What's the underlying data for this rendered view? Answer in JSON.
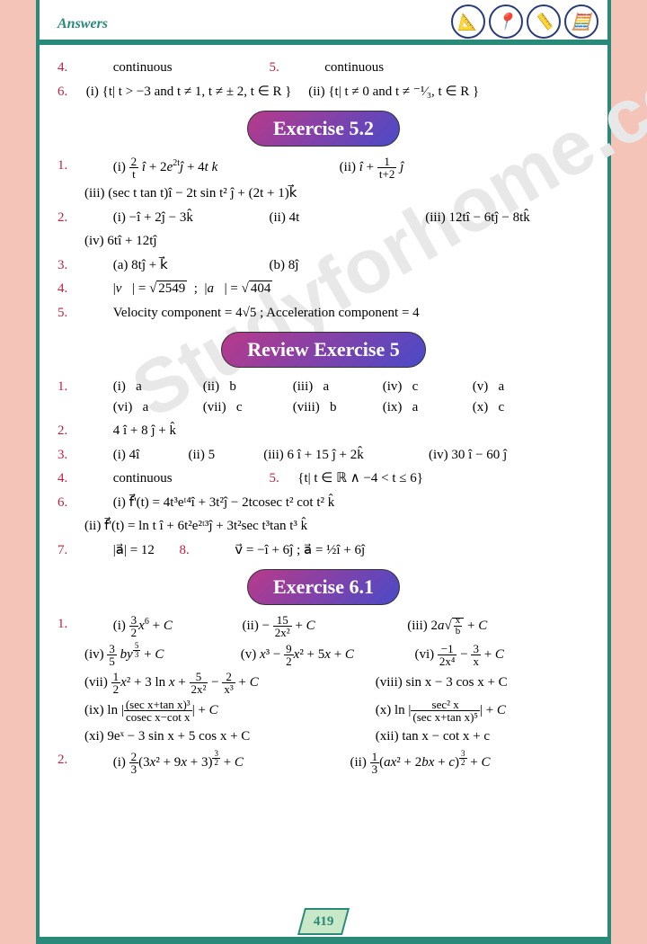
{
  "header": {
    "title": "Answers"
  },
  "colors": {
    "border": "#2a8a7a",
    "qnum": "#8a2a4a",
    "pill_gradient_from": "#b83a8a",
    "pill_gradient_to": "#4a4ac8",
    "watermark": "#e8e8e8",
    "page_bg": "#f5c4b8"
  },
  "icons": [
    "📐",
    "✂️",
    "📏",
    "🧮"
  ],
  "top": {
    "q4": {
      "num": "4.",
      "text": "continuous"
    },
    "q5": {
      "num": "5.",
      "text": "continuous"
    },
    "q6": {
      "num": "6.",
      "i": "(i) {t| t > −3 and t ≠ 1, t ≠ ± 2, t ∈ R }",
      "ii": "(ii) {t| t ≠ 0 and t ≠ ⁻¹⁄₃, t ∈ R }"
    }
  },
  "pill1": "Exercise 5.2",
  "ex52": {
    "q1": {
      "num": "1.",
      "i": "(i) (2/t) î + 2e²ᵗĵ + 4t k⃗",
      "ii": "(ii) î + 1/(t+2) ĵ",
      "iii": "(iii) (sec t tan t)î − 2t sin t² ĵ + (2t + 1)k⃗"
    },
    "q2": {
      "num": "2.",
      "i": "(i)  −î + 2ĵ − 3k̂",
      "ii": "(ii) 4t",
      "iii": "(iii) 12tî − 6tĵ − 8tk̂",
      "iv": "(iv) 6tî + 12tĵ"
    },
    "q3": {
      "num": "3.",
      "a": "(a) 8tĵ + k⃗",
      "b": "(b) 8ĵ"
    },
    "q4": {
      "num": "4.",
      "text": "|v⃗| = √2549  ;    |a⃗| = √404"
    },
    "q5": {
      "num": "5.",
      "text": "Velocity component = 4√5 ; Acceleration component = 4"
    }
  },
  "pill2": "Review Exercise 5",
  "rev5": {
    "q1": {
      "num": "1.",
      "items": [
        [
          "(i)",
          "a"
        ],
        [
          "(ii)",
          "b"
        ],
        [
          "(iii)",
          "a"
        ],
        [
          "(iv)",
          "c"
        ],
        [
          "(v)",
          "a"
        ],
        [
          "(vi)",
          "a"
        ],
        [
          "(vii)",
          "c"
        ],
        [
          "(viii)",
          "b"
        ],
        [
          "(ix)",
          "a"
        ],
        [
          "(x)",
          "c"
        ]
      ]
    },
    "q2": {
      "num": "2.",
      "text": "4 î + 8 ĵ + k̂"
    },
    "q3": {
      "num": "3.",
      "i": "(i) 4î",
      "ii": "(ii) 5",
      "iii": "(iii) 6 î + 15 ĵ + 2k̂",
      "iv": "(iv) 30 î − 60 ĵ"
    },
    "q4": {
      "num": "4.",
      "text": "continuous"
    },
    "q5": {
      "num": "5.",
      "text": "{t| t ∈ ℝ ∧ −4 < t ≤ 6}"
    },
    "q6": {
      "num": "6.",
      "i": "(i) f⃗'(t) = 4t³eᵗ⁴î + 3t²ĵ − 2tcosec t² cot t² k̂",
      "ii": "(ii) f⃗'(t) = ln t î + 6t²e²ᵗ³ĵ + 3t²sec t³tan t³ k̂"
    },
    "q7": {
      "num": "7.",
      "text": "|a⃗| = 12"
    },
    "q8": {
      "num": "8.",
      "text": "v⃗ = −î + 6ĵ  ;  a⃗ = ½î + 6ĵ"
    }
  },
  "pill3": "Exercise 6.1",
  "ex61": {
    "q1": {
      "num": "1.",
      "i": "(i) (3/2)x⁶ + C",
      "ii": "(ii) − 15/(2x²) + C",
      "iii": "(iii) 2a√(x/b) + C",
      "iv": "(iv) (3/5) b y^(5/3) + C",
      "v": "(v) x³ − (9/2)x² + 5x + C",
      "vi": "(vi) −1/(2x⁴) − 3/x + C",
      "vii": "(vii) ½x² + 3 ln x + 5/(2x²) − 2/x³ + C",
      "viii": "(viii) sin x − 3 cos x + C",
      "ix": "(ix) ln |(sec x+tan x)³/(cosec x−cot x)| + C",
      "x": "(x) ln | sec²x/(sec x+tan x)⁵ | + C",
      "xi": "(xi) 9eˣ − 3 sin x + 5 cos x + C",
      "xii": "(xii) tan x − cot x + c"
    },
    "q2": {
      "num": "2.",
      "i": "(i) (2/3)(3x² + 9x + 3)^(3/2) + C",
      "ii": "(ii) (1/3)(ax² + 2bx + c)^(3/2) + C"
    }
  },
  "pageNum": "419",
  "watermark": "Studyforhome.com"
}
